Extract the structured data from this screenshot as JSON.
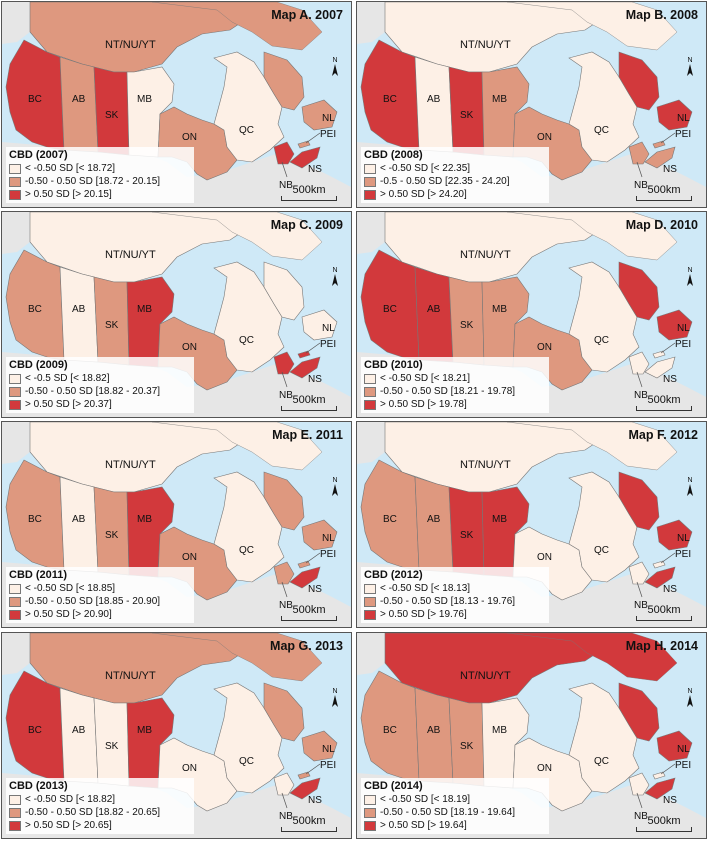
{
  "region_labels": {
    "north": "NT/NU/YT",
    "bc": "BC",
    "ab": "AB",
    "sk": "SK",
    "mb": "MB",
    "on": "ON",
    "qc": "QC",
    "nl": "NL",
    "pei": "PEI",
    "ns": "NS",
    "nb": "NB"
  },
  "scale_label": "500km",
  "north_arrow_letter": "N",
  "colors": {
    "low": "#fdf0e6",
    "mid": "#de987f",
    "high": "#d2393c",
    "water": "#cfe9f7",
    "outside": "#e6e6e6"
  },
  "maps": [
    {
      "title": "Map A. 2007",
      "legend_title": "CBD (2007)",
      "legend": [
        "< -0.50 SD [< 18.72]",
        "-0.50 - 0.50 SD [18.72 - 20.15]",
        "> 0.50 SD [> 20.15]"
      ],
      "classes": {
        "north": "mid",
        "bc": "high",
        "ab": "mid",
        "sk": "high",
        "mb": "low",
        "on": "mid",
        "qc": "low",
        "nl": "mid",
        "pei": "mid",
        "ns": "high",
        "nb": "high"
      }
    },
    {
      "title": "Map B. 2008",
      "legend_title": "CBD (2008)",
      "legend": [
        "< -0.50 SD [< 22.35]",
        "-0.5 - 0.50 SD [22.35 - 24.20]",
        "> 0.50 SD [> 24.20]"
      ],
      "classes": {
        "north": "low",
        "bc": "high",
        "ab": "low",
        "sk": "high",
        "mb": "mid",
        "on": "mid",
        "qc": "low",
        "nl": "high",
        "pei": "mid",
        "ns": "mid",
        "nb": "mid"
      }
    },
    {
      "title": "Map C. 2009",
      "legend_title": "CBD (2009)",
      "legend": [
        "< -0.5 SD [< 18.82]",
        "-0.50 - 0.50 SD [18.82 - 20.37]",
        "> 0.50 SD [> 20.37]"
      ],
      "classes": {
        "north": "low",
        "bc": "mid",
        "ab": "low",
        "sk": "mid",
        "mb": "high",
        "on": "mid",
        "qc": "low",
        "nl": "low",
        "pei": "high",
        "ns": "high",
        "nb": "high"
      }
    },
    {
      "title": "Map D. 2010",
      "legend_title": "CBD (2010)",
      "legend": [
        "< -0.50 SD [< 18.21]",
        "-0.50 - 0.50 SD [18.21 - 19.78]",
        "> 0.50 SD [> 19.78]"
      ],
      "classes": {
        "north": "low",
        "bc": "high",
        "ab": "high",
        "sk": "mid",
        "mb": "mid",
        "on": "mid",
        "qc": "low",
        "nl": "high",
        "pei": "low",
        "ns": "low",
        "nb": "low"
      }
    },
    {
      "title": "Map E. 2011",
      "legend_title": "CBD (2011)",
      "legend": [
        "< -0.50 SD [< 18.85]",
        "-0.50 - 0.50 SD [18.85 - 20.90]",
        "> 0.50 SD [> 20.90]"
      ],
      "classes": {
        "north": "low",
        "bc": "mid",
        "ab": "low",
        "sk": "mid",
        "mb": "high",
        "on": "mid",
        "qc": "low",
        "nl": "mid",
        "pei": "mid",
        "ns": "high",
        "nb": "mid"
      }
    },
    {
      "title": "Map F. 2012",
      "legend_title": "CBD (2012)",
      "legend": [
        "< -0.50 SD [< 18.13]",
        "-0.50 - 0.50 SD [18.13 - 19.76]",
        "> 0.50 SD [> 19.76]"
      ],
      "classes": {
        "north": "low",
        "bc": "mid",
        "ab": "mid",
        "sk": "high",
        "mb": "high",
        "on": "low",
        "qc": "low",
        "nl": "high",
        "pei": "low",
        "ns": "high",
        "nb": "low"
      }
    },
    {
      "title": "Map G. 2013",
      "legend_title": "CBD (2013)",
      "legend": [
        "< -0.50 SD [< 18.82]",
        "-0.50 - 0.50 SD [18.82 - 20.65]",
        "> 0.50 SD [> 20.65]"
      ],
      "classes": {
        "north": "mid",
        "bc": "high",
        "ab": "low",
        "sk": "low",
        "mb": "high",
        "on": "low",
        "qc": "low",
        "nl": "mid",
        "pei": "mid",
        "ns": "high",
        "nb": "low"
      }
    },
    {
      "title": "Map H. 2014",
      "legend_title": "CBD (2014)",
      "legend": [
        "< -0.50 SD [< 18.19]",
        "-0.50 - 0.50 SD [18.19 - 19.64]",
        "> 0.50 SD [> 19.64]"
      ],
      "classes": {
        "north": "high",
        "bc": "mid",
        "ab": "mid",
        "sk": "mid",
        "mb": "low",
        "on": "low",
        "qc": "low",
        "nl": "high",
        "pei": "low",
        "ns": "high",
        "nb": "low"
      }
    }
  ]
}
